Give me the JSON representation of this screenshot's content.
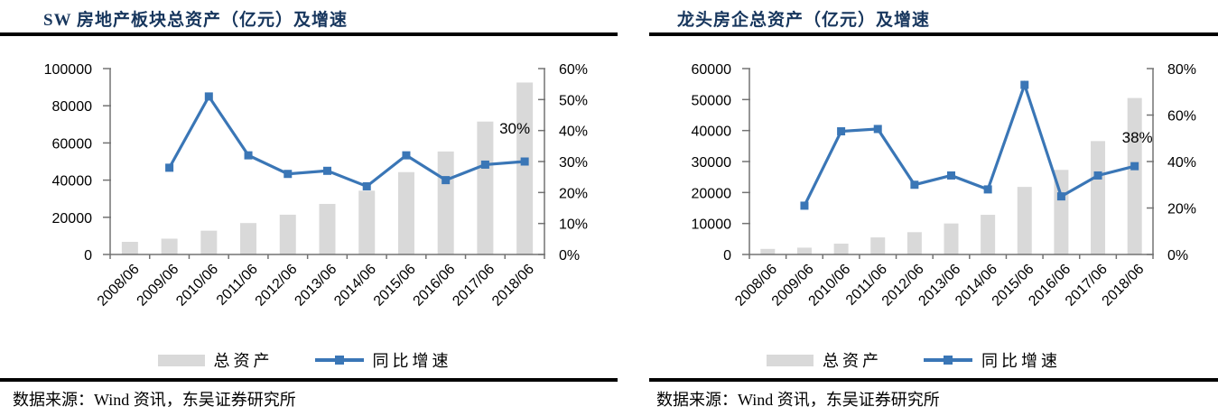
{
  "colors": {
    "bar_fill": "#D9D9D9",
    "line": "#3A76B6",
    "title_navy": "#17365D",
    "axis_gray": "#737373",
    "tick_label": "#000000",
    "rule_black": "#000000"
  },
  "panels": [
    {
      "title": "SW 房地产板块总资产（亿元）及增速",
      "legend": [
        {
          "label": "总资产"
        },
        {
          "label": "同比增速"
        }
      ],
      "source": "数据来源：Wind 资讯，东吴证券研究所"
    },
    {
      "title": "龙头房企总资产（亿元）及增速",
      "legend": [
        {
          "label": "总资产"
        },
        {
          "label": "同比增速"
        }
      ],
      "source": "数据来源：Wind 资讯，东吴证券研究所"
    }
  ],
  "chart_data": [
    {
      "type": "bar",
      "title": "SW 房地产板块总资产（亿元）及增速",
      "categories": [
        "2008/06",
        "2009/06",
        "2010/06",
        "2011/06",
        "2012/06",
        "2013/06",
        "2014/06",
        "2015/06",
        "2016/06",
        "2017/06",
        "2018/06"
      ],
      "series": [
        {
          "name": "总资产",
          "type": "bar",
          "axis": "left",
          "values": [
            6800,
            8500,
            12800,
            16900,
            21400,
            27200,
            34300,
            44300,
            55400,
            71500,
            92500
          ]
        },
        {
          "name": "同比增速",
          "type": "line",
          "axis": "right",
          "unit": "%",
          "values": [
            null,
            28,
            51,
            32,
            26,
            27,
            22,
            32,
            24,
            29,
            30
          ]
        }
      ],
      "left_axis": {
        "min": 0,
        "max": 100000,
        "step": 20000
      },
      "right_axis": {
        "min": 0,
        "max": 60,
        "step": 10,
        "format": "percent"
      },
      "annotation": {
        "text": "30%",
        "at_category": "2018/06"
      },
      "grid": false,
      "legend_position": "bottom"
    },
    {
      "type": "bar",
      "title": "龙头房企总资产（亿元）及增速",
      "categories": [
        "2008/06",
        "2009/06",
        "2010/06",
        "2011/06",
        "2012/06",
        "2013/06",
        "2014/06",
        "2015/06",
        "2016/06",
        "2017/06",
        "2018/06"
      ],
      "series": [
        {
          "name": "总资产",
          "type": "bar",
          "axis": "left",
          "values": [
            1800,
            2200,
            3500,
            5500,
            7200,
            10000,
            12800,
            21800,
            27300,
            36600,
            50500
          ]
        },
        {
          "name": "同比增速",
          "type": "line",
          "axis": "right",
          "unit": "%",
          "values": [
            null,
            21,
            53,
            54,
            30,
            34,
            28,
            73,
            25,
            34,
            38
          ]
        }
      ],
      "left_axis": {
        "min": 0,
        "max": 60000,
        "step": 10000
      },
      "right_axis": {
        "min": 0,
        "max": 80,
        "step": 20,
        "format": "percent"
      },
      "annotation": {
        "text": "38%",
        "at_category": "2018/06"
      },
      "grid": false,
      "legend_position": "bottom"
    }
  ]
}
